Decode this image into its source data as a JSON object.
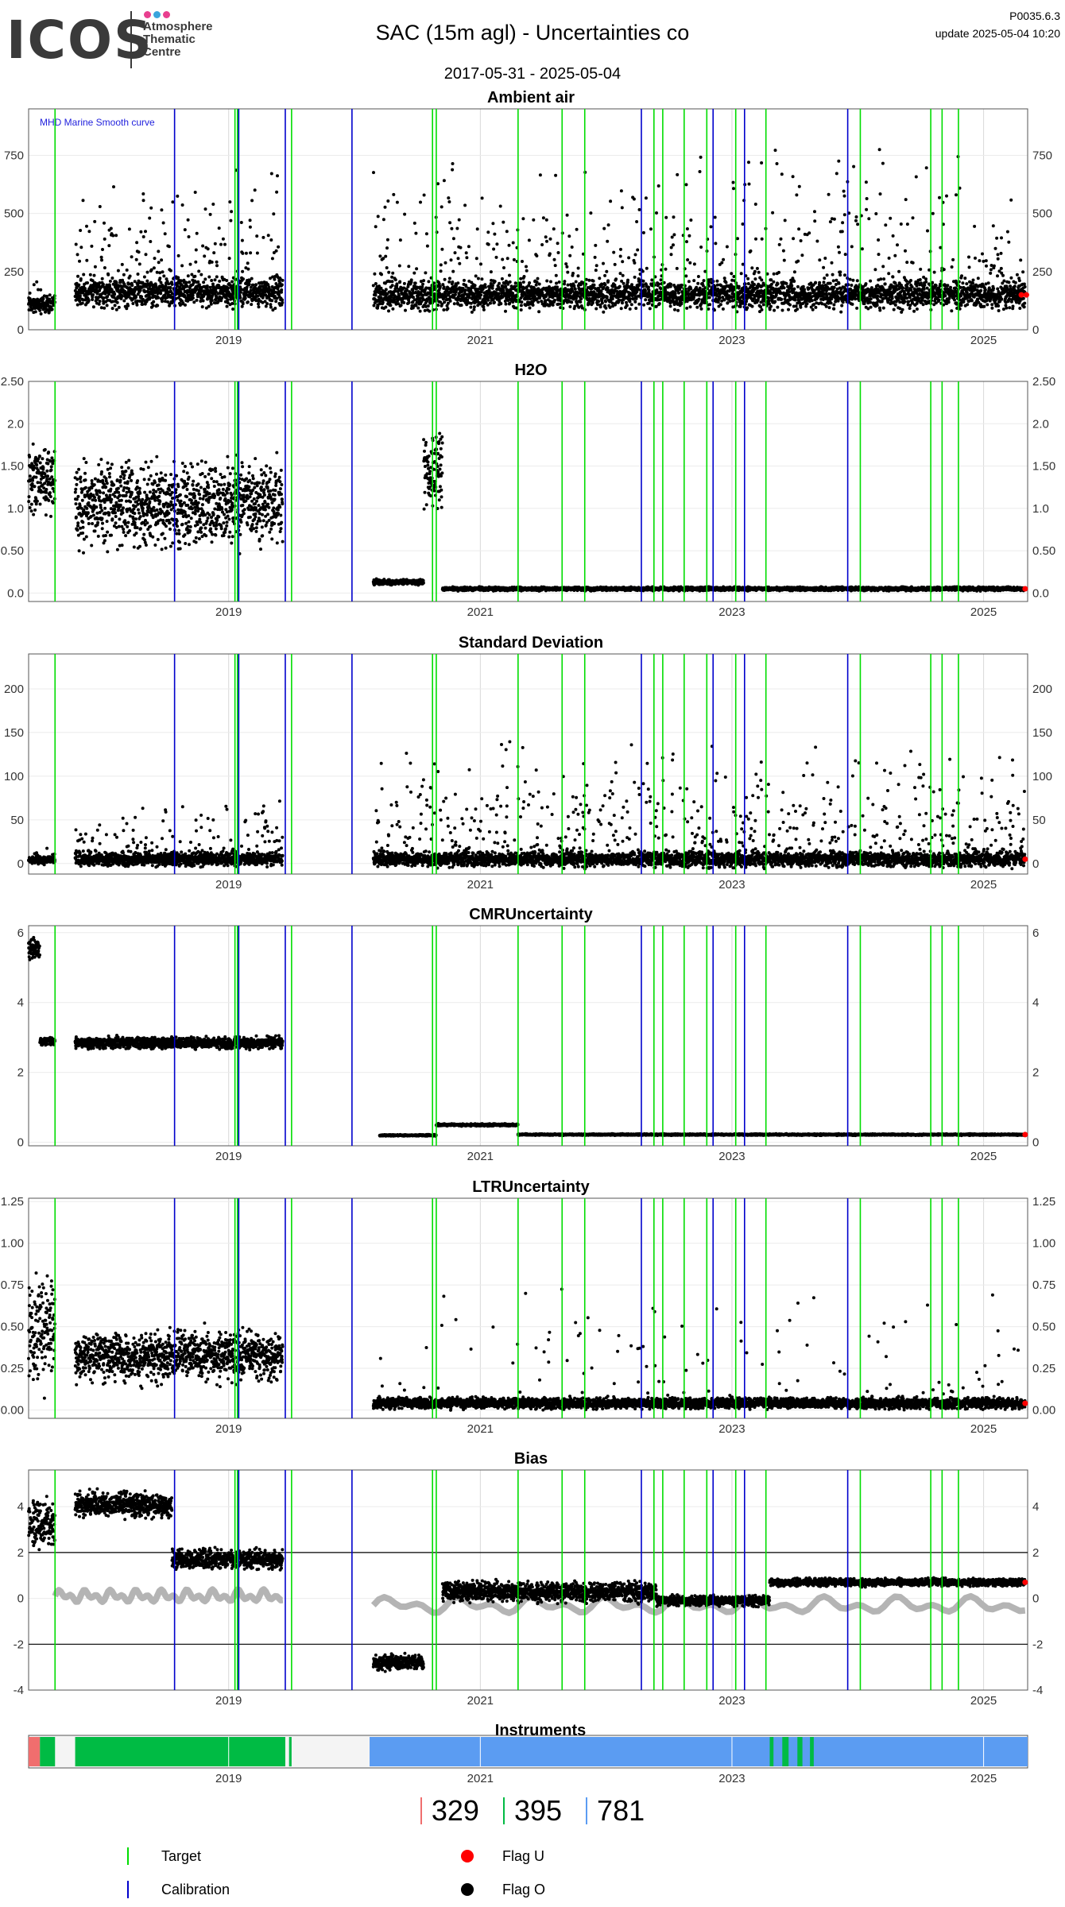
{
  "header": {
    "logo_main": "ICOS",
    "logo_sub": "Atmosphere\nThematic\nCentre",
    "logo_dots": [
      "#e83f8f",
      "#3aa4dc",
      "#e83f8f"
    ],
    "title": "SAC  (15m agl) - Uncertainties co",
    "code": "P0035.6.3",
    "update": "update  2025-05-04 10:20",
    "date_range": "2017-05-31 - 2025-05-04"
  },
  "colors": {
    "target_line": "#00dd00",
    "calibration_line": "#0000cc",
    "flag_u": "#ff0000",
    "flag_o": "#000000",
    "smooth_curve": "#b4b4b4",
    "instrument_1": "#f06e6e",
    "instrument_2": "#00bb44",
    "instrument_3": "#5b9cf2"
  },
  "chart_data": [
    {
      "type": "scatter",
      "title": "Ambient air",
      "annotation": "MHD Marine Smooth curve",
      "xlim": [
        2017.41,
        2025.35
      ],
      "ylim": [
        0,
        950
      ],
      "yticks": [
        0,
        250,
        500,
        750
      ],
      "xticks": [
        2019,
        2021,
        2023,
        2025
      ],
      "segments": [
        {
          "x0": 2017.41,
          "x1": 2017.62,
          "base": 110,
          "spread": 35,
          "peaks": 0.05,
          "peak_max": 250
        },
        {
          "x0": 2017.78,
          "x1": 2019.43,
          "base": 160,
          "spread": 60,
          "peaks": 0.2,
          "peak_max": 700
        },
        {
          "x0": 2020.15,
          "x1": 2025.33,
          "base": 150,
          "spread": 55,
          "peaks": 0.18,
          "peak_max": 800
        }
      ],
      "flag_u_x": [
        2025.3,
        2025.34
      ]
    },
    {
      "type": "scatter",
      "title": "H2O",
      "xlim": [
        2017.41,
        2025.35
      ],
      "ylim": [
        -0.1,
        2.5
      ],
      "yticks": [
        0.0,
        0.5,
        1.0,
        1.5,
        2.0,
        2.5
      ],
      "xticks": [
        2019,
        2021,
        2023,
        2025
      ],
      "segments": [
        {
          "x0": 2017.41,
          "x1": 2017.62,
          "base": 1.35,
          "spread": 0.35,
          "peaks": 0.0,
          "peak_max": 2.1
        },
        {
          "x0": 2017.78,
          "x1": 2019.43,
          "base": 1.05,
          "spread": 0.45,
          "peaks": 0.0,
          "peak_max": 2.3
        },
        {
          "x0": 2020.15,
          "x1": 2020.55,
          "base": 0.13,
          "spread": 0.03,
          "peaks": 0.0,
          "peak_max": 0.25
        },
        {
          "x0": 2020.55,
          "x1": 2020.7,
          "base": 1.45,
          "spread": 0.4,
          "peaks": 0.0,
          "peak_max": 2.3
        },
        {
          "x0": 2020.7,
          "x1": 2025.33,
          "base": 0.05,
          "spread": 0.02,
          "peaks": 0.0,
          "peak_max": 0.2
        }
      ],
      "flag_u_x": [
        2025.33
      ]
    },
    {
      "type": "scatter",
      "title": "Standard Deviation",
      "xlim": [
        2017.41,
        2025.35
      ],
      "ylim": [
        -12,
        240
      ],
      "yticks": [
        0,
        50,
        100,
        150,
        200
      ],
      "xticks": [
        2019,
        2021,
        2023,
        2025
      ],
      "segments": [
        {
          "x0": 2017.41,
          "x1": 2017.62,
          "base": 4,
          "spread": 4,
          "peaks": 0.05,
          "peak_max": 30
        },
        {
          "x0": 2017.78,
          "x1": 2019.43,
          "base": 5,
          "spread": 7,
          "peaks": 0.15,
          "peak_max": 80
        },
        {
          "x0": 2020.15,
          "x1": 2025.33,
          "base": 5,
          "spread": 8,
          "peaks": 0.18,
          "peak_max": 150
        }
      ],
      "flag_u_x": [
        2025.33
      ]
    },
    {
      "type": "scatter",
      "title": "CMRUncertainty",
      "xlim": [
        2017.41,
        2025.35
      ],
      "ylim": [
        -0.1,
        6.2
      ],
      "yticks": [
        0,
        2,
        4,
        6
      ],
      "xticks": [
        2019,
        2021,
        2023,
        2025
      ],
      "segments": [
        {
          "x0": 2017.41,
          "x1": 2017.5,
          "base": 5.5,
          "spread": 0.3,
          "peaks": 0.0,
          "peak_max": 6
        },
        {
          "x0": 2017.5,
          "x1": 2017.62,
          "base": 2.9,
          "spread": 0.1,
          "peaks": 0.0,
          "peak_max": 3
        },
        {
          "x0": 2017.78,
          "x1": 2019.43,
          "base": 2.85,
          "spread": 0.15,
          "peaks": 0.0,
          "peak_max": 3.1
        },
        {
          "x0": 2020.2,
          "x1": 2020.65,
          "base": 0.2,
          "spread": 0.02,
          "peaks": 0.0,
          "peak_max": 0.3
        },
        {
          "x0": 2020.65,
          "x1": 2021.3,
          "base": 0.5,
          "spread": 0.03,
          "peaks": 0.0,
          "peak_max": 0.6
        },
        {
          "x0": 2021.3,
          "x1": 2025.33,
          "base": 0.22,
          "spread": 0.02,
          "peaks": 0.0,
          "peak_max": 0.3
        }
      ],
      "flag_u_x": [
        2025.33
      ]
    },
    {
      "type": "scatter",
      "title": "LTRUncertainty",
      "xlim": [
        2017.41,
        2025.35
      ],
      "ylim": [
        -0.05,
        1.27
      ],
      "yticks": [
        0.0,
        0.25,
        0.5,
        0.75,
        1.0,
        1.25
      ],
      "xticks": [
        2019,
        2021,
        2023,
        2025
      ],
      "segments": [
        {
          "x0": 2017.41,
          "x1": 2017.62,
          "base": 0.5,
          "spread": 0.3,
          "peaks": 0.0,
          "peak_max": 1.2
        },
        {
          "x0": 2017.78,
          "x1": 2019.43,
          "base": 0.32,
          "spread": 0.14,
          "peaks": 0.0,
          "peak_max": 0.8
        },
        {
          "x0": 2020.15,
          "x1": 2025.33,
          "base": 0.04,
          "spread": 0.03,
          "peaks": 0.04,
          "peak_max": 0.8
        }
      ],
      "flag_u_x": [
        2025.33
      ]
    },
    {
      "type": "scatter",
      "title": "Bias",
      "xlim": [
        2017.41,
        2025.35
      ],
      "ylim": [
        -4,
        5.6
      ],
      "yticks": [
        -4,
        -2,
        0,
        2,
        4
      ],
      "xticks": [
        2019,
        2021,
        2023,
        2025
      ],
      "hlines": [
        -2,
        2
      ],
      "segments": [
        {
          "x0": 2017.41,
          "x1": 2017.62,
          "base": 3.2,
          "spread": 0.9,
          "peaks": 0.0,
          "peak_max": 5
        },
        {
          "x0": 2017.78,
          "x1": 2018.55,
          "base": 4.1,
          "spread": 0.5,
          "peaks": 0.0,
          "peak_max": 5
        },
        {
          "x0": 2018.55,
          "x1": 2019.43,
          "base": 1.7,
          "spread": 0.4,
          "peaks": 0.0,
          "peak_max": 3
        },
        {
          "x0": 2020.15,
          "x1": 2020.55,
          "base": -2.8,
          "spread": 0.3,
          "peaks": 0.0,
          "peak_max": -2
        },
        {
          "x0": 2020.7,
          "x1": 2022.4,
          "base": 0.3,
          "spread": 0.4,
          "peaks": 0.0,
          "peak_max": 1.5
        },
        {
          "x0": 2022.4,
          "x1": 2023.3,
          "base": -0.1,
          "spread": 0.2,
          "peaks": 0.0,
          "peak_max": 1
        },
        {
          "x0": 2023.3,
          "x1": 2025.33,
          "base": 0.7,
          "spread": 0.15,
          "peaks": 0.0,
          "peak_max": 1
        }
      ],
      "smooth_curve": [
        {
          "x0": 2017.62,
          "x1": 2019.43,
          "base": 0.1,
          "amp": 0.3
        },
        {
          "x0": 2020.15,
          "x1": 2025.33,
          "base": -0.3,
          "amp": 0.4
        }
      ],
      "flag_u_x": [
        2025.33
      ]
    }
  ],
  "vlines": {
    "target": [
      2017.62,
      2019.05,
      2019.07,
      2019.5,
      2020.62,
      2020.65,
      2021.3,
      2021.65,
      2021.83,
      2022.38,
      2022.45,
      2022.62,
      2022.8,
      2023.03,
      2023.27,
      2024.02,
      2024.58,
      2024.67,
      2024.8
    ],
    "calibration": [
      2018.57,
      2019.08,
      2019.45,
      2019.98,
      2022.28,
      2022.85,
      2023.1,
      2023.92
    ]
  },
  "instruments": {
    "title": "Instruments",
    "bars": [
      {
        "x0": 2017.41,
        "x1": 2017.5,
        "color": "#f06e6e"
      },
      {
        "x0": 2017.5,
        "x1": 2017.62,
        "color": "#00bb44"
      },
      {
        "x0": 2017.78,
        "x1": 2019.45,
        "color": "#00bb44"
      },
      {
        "x0": 2019.48,
        "x1": 2019.5,
        "color": "#00bb44"
      },
      {
        "x0": 2020.12,
        "x1": 2025.35,
        "color": "#5b9cf2"
      },
      {
        "x0": 2023.3,
        "x1": 2023.33,
        "color": "#00bb44"
      },
      {
        "x0": 2023.4,
        "x1": 2023.45,
        "color": "#00bb44"
      },
      {
        "x0": 2023.52,
        "x1": 2023.56,
        "color": "#00bb44"
      },
      {
        "x0": 2023.62,
        "x1": 2023.65,
        "color": "#00bb44"
      }
    ],
    "xticks": [
      2019,
      2021,
      2023,
      2025
    ],
    "counts": [
      {
        "label": "329",
        "color": "#f06e6e"
      },
      {
        "label": "395",
        "color": "#00bb44"
      },
      {
        "label": "781",
        "color": "#5b9cf2"
      }
    ]
  },
  "legend": {
    "target": "Target",
    "calibration": "Calibration",
    "flag_u": "Flag U",
    "flag_o": "Flag O"
  }
}
